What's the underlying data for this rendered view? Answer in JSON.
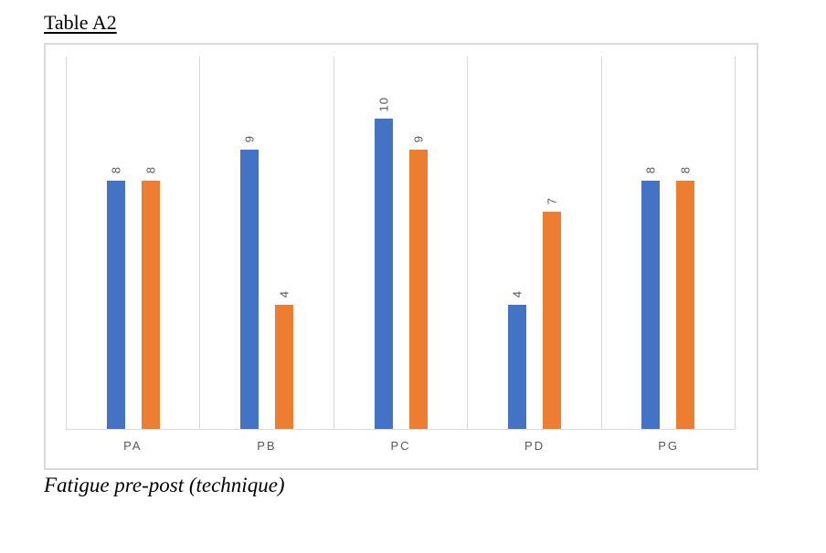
{
  "document": {
    "title": "Table A2",
    "caption": "Fatigue pre-post (technique)"
  },
  "chart_data": {
    "type": "bar",
    "title": "Table A2",
    "caption": "Fatigue pre-post (technique)",
    "categories": [
      "PA",
      "PB",
      "PC",
      "PD",
      "PG"
    ],
    "series": [
      {
        "name": "series-1",
        "color": "#4472C4",
        "values": [
          8,
          9,
          10,
          4,
          8
        ]
      },
      {
        "name": "series-2",
        "color": "#ED7D31",
        "values": [
          8,
          4,
          9,
          7,
          8
        ]
      }
    ],
    "data_labels": {
      "visible": true,
      "rotation": "vertical-bottom-to-top",
      "color": "#595959"
    },
    "xlabel": "",
    "ylabel": "",
    "ylim": [
      0,
      12
    ],
    "legend": "none",
    "gridlines": {
      "vertical_category_separators": true,
      "baseline": true,
      "color": "#d9d9d9"
    },
    "axis_label_color": "#595959",
    "plot_border_color": "#d9d9d9"
  }
}
